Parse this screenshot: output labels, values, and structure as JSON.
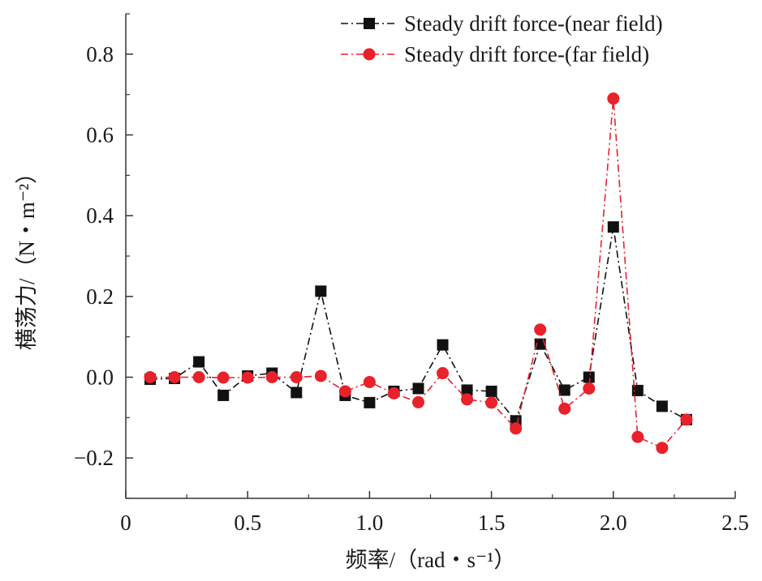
{
  "chart_data": {
    "type": "line",
    "xlabel": "频率/（rad・s⁻¹）",
    "ylabel": "横荡力/（N・m⁻²）",
    "xlim": [
      0,
      2.5
    ],
    "ylim": [
      -0.3,
      0.9
    ],
    "x_ticks": [
      "0",
      "0.5",
      "1.0",
      "1.5",
      "2.0",
      "2.5"
    ],
    "y_ticks": [
      "−0.2",
      "0.0",
      "0.2",
      "0.4",
      "0.6",
      "0.8"
    ],
    "x_tick_values": [
      0,
      0.5,
      1.0,
      1.5,
      2.0,
      2.5
    ],
    "y_tick_values": [
      -0.2,
      0.0,
      0.2,
      0.4,
      0.6,
      0.8
    ],
    "grid": false,
    "legend_position": "top-right",
    "x": [
      0.1,
      0.2,
      0.3,
      0.4,
      0.5,
      0.6,
      0.7,
      0.8,
      0.9,
      1.0,
      1.1,
      1.2,
      1.3,
      1.4,
      1.5,
      1.6,
      1.7,
      1.8,
      1.9,
      2.0,
      2.1,
      2.2,
      2.3
    ],
    "series": [
      {
        "name": "Steady drift  force-(near field)",
        "color": "#111111",
        "marker": "square",
        "line_style": "dash-dot",
        "values": [
          -0.005,
          -0.003,
          0.038,
          -0.045,
          0.003,
          0.01,
          -0.038,
          0.213,
          -0.045,
          -0.063,
          -0.035,
          -0.028,
          0.08,
          -0.032,
          -0.035,
          -0.108,
          0.082,
          -0.032,
          0.0,
          0.372,
          -0.033,
          -0.072,
          -0.105
        ]
      },
      {
        "name": "Steady drift  force-(far field)",
        "color": "#e8212b",
        "marker": "circle",
        "line_style": "dash-dot",
        "values": [
          0.0,
          0.0,
          0.0,
          -0.001,
          -0.001,
          0.0,
          0.0,
          0.003,
          -0.035,
          -0.012,
          -0.04,
          -0.062,
          0.01,
          -0.055,
          -0.063,
          -0.127,
          0.118,
          -0.078,
          -0.028,
          0.69,
          -0.148,
          -0.175,
          -0.105
        ]
      }
    ]
  }
}
